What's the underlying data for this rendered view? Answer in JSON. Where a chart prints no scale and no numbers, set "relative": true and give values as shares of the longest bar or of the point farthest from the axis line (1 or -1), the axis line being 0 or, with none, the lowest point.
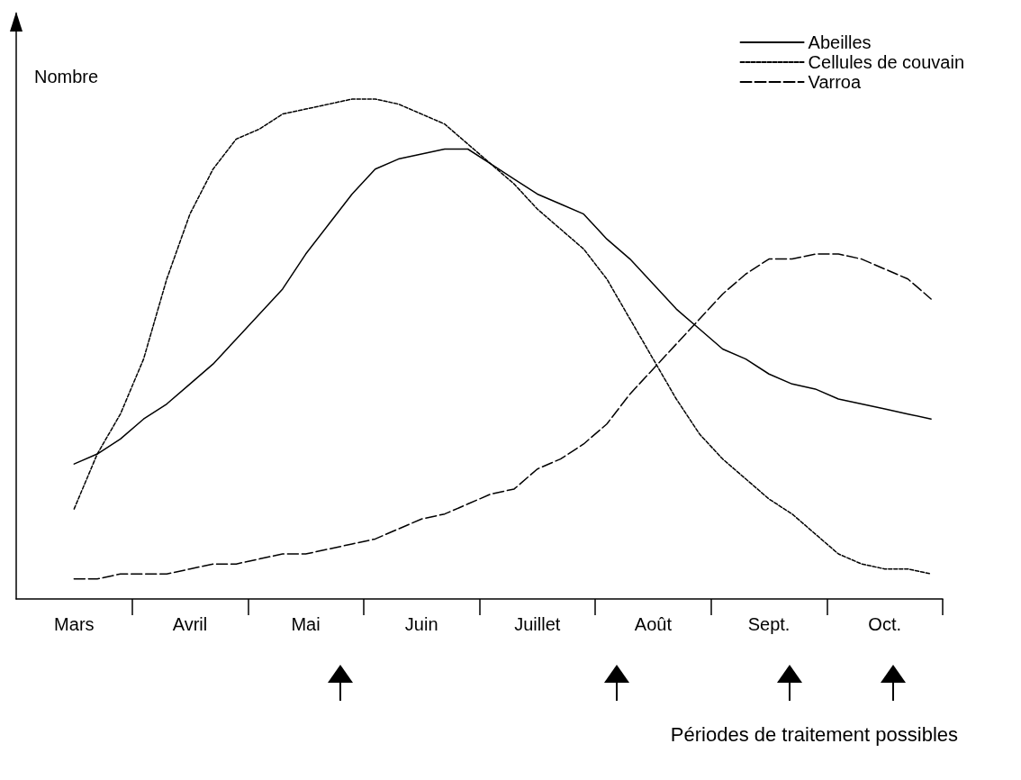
{
  "chart_data": {
    "type": "line",
    "relative": true,
    "ylabel": "Nombre",
    "legend": "top right",
    "marker": "none",
    "categories": [
      null,
      null,
      "Mars",
      null,
      null,
      null,
      null,
      "Avril",
      null,
      null,
      null,
      null,
      "Mai",
      null,
      null,
      null,
      null,
      "Juin",
      null,
      null,
      null,
      null,
      "Juillet",
      null,
      null,
      null,
      null,
      "Août",
      null,
      null,
      null,
      null,
      "Sept.",
      null,
      null,
      null,
      null,
      "Oct.",
      null,
      null
    ],
    "annotations": [
      "Périodes de traitement possibles"
    ],
    "series": [
      {
        "name": "Abeilles",
        "color": "#000000",
        "line_style": "solid",
        "values": [
          null,
          null,
          0.27,
          0.29,
          0.32,
          0.36,
          0.39,
          0.43,
          0.47,
          0.52,
          0.57,
          0.62,
          0.69,
          0.75,
          0.81,
          0.86,
          0.88,
          0.89,
          0.9,
          0.9,
          0.87,
          0.84,
          0.81,
          0.79,
          0.77,
          0.72,
          0.68,
          0.63,
          0.58,
          0.54,
          0.5,
          0.48,
          0.45,
          0.43,
          0.42,
          0.4,
          0.39,
          0.38,
          0.37,
          0.36
        ]
      },
      {
        "name": "Cellules de couvain",
        "color": "#000000",
        "line_style": "dotted",
        "values": [
          null,
          null,
          0.18,
          0.29,
          0.37,
          0.48,
          0.64,
          0.77,
          0.86,
          0.92,
          0.94,
          0.97,
          0.98,
          0.99,
          1,
          1,
          0.99,
          0.97,
          0.95,
          0.91,
          0.87,
          0.83,
          0.78,
          0.74,
          0.7,
          0.64,
          0.56,
          0.48,
          0.4,
          0.33,
          0.28,
          0.24,
          0.2,
          0.17,
          0.13,
          0.09,
          0.07,
          0.06,
          0.06,
          0.05
        ]
      },
      {
        "name": "Varroa",
        "color": "#000000",
        "line_style": "dashed",
        "values": [
          null,
          null,
          0.04,
          0.04,
          0.05,
          0.05,
          0.05,
          0.06,
          0.07,
          0.07,
          0.08,
          0.09,
          0.09,
          0.1,
          0.11,
          0.12,
          0.14,
          0.16,
          0.17,
          0.19,
          0.21,
          0.22,
          0.26,
          0.28,
          0.31,
          0.35,
          0.41,
          0.46,
          0.51,
          0.56,
          0.61,
          0.65,
          0.68,
          0.68,
          0.69,
          0.69,
          0.68,
          0.66,
          0.64,
          0.6
        ]
      }
    ]
  }
}
